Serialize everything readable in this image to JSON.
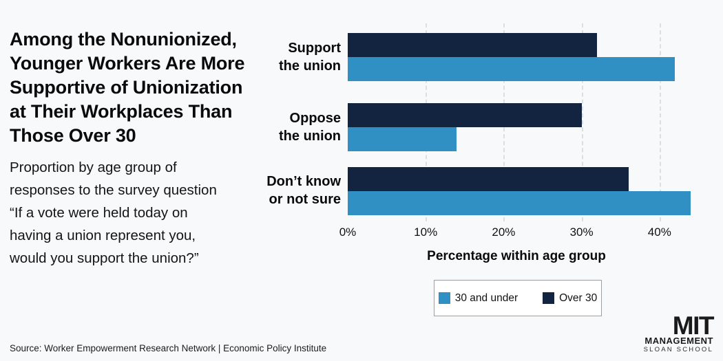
{
  "title_lines": [
    "Among the Nonunionized,",
    "Younger Workers Are More",
    "Supportive of Unionization",
    "at Their Workplaces Than",
    "Those Over 30"
  ],
  "subtitle_lines": [
    "Proportion by age group of",
    "responses to the survey question",
    "“If a vote were held today on",
    "having a union represent you,",
    "would you support the union?”"
  ],
  "chart_data": {
    "type": "bar",
    "orientation": "horizontal",
    "categories": [
      "Support the union",
      "Oppose the union",
      "Don’t know or not sure"
    ],
    "category_lines": [
      [
        "Support",
        "the union"
      ],
      [
        "Oppose",
        "the union"
      ],
      [
        "Don’t know",
        "or not sure"
      ]
    ],
    "series": [
      {
        "name": "30 and under",
        "color": "#3090c4",
        "values": [
          42,
          14,
          44
        ]
      },
      {
        "name": "Over 30",
        "color": "#122440",
        "values": [
          32,
          30,
          36
        ]
      }
    ],
    "bar_order_top_to_bottom": [
      "Over 30",
      "30 and under"
    ],
    "xlabel": "Percentage within age group",
    "x_ticks": [
      0,
      10,
      20,
      30,
      40
    ],
    "x_tick_labels": [
      "0%",
      "10%",
      "20%",
      "30%",
      "40%"
    ],
    "xlim": [
      0,
      46
    ],
    "grid": "dashed-vertical",
    "legend_position": "bottom"
  },
  "legend": {
    "items": [
      {
        "label": "30 and under",
        "color": "#3090c4"
      },
      {
        "label": "Over 30",
        "color": "#122440"
      }
    ]
  },
  "source": "Source: Worker Empowerment Research Network | Economic Policy Institute",
  "logo": {
    "line1": "MIT",
    "line2": "MANAGEMENT",
    "line3": "SLOAN SCHOOL"
  }
}
